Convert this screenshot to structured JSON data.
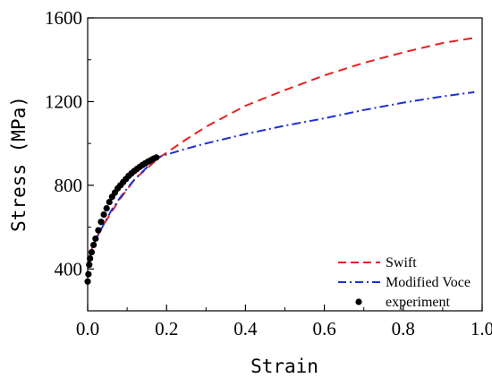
{
  "chart_data": {
    "type": "line",
    "title": "",
    "xlabel": "Strain",
    "ylabel": "Stress (MPa)",
    "xlim": [
      0.0,
      1.0
    ],
    "ylim": [
      200,
      1600
    ],
    "xticks": [
      "0.0",
      "0.2",
      "0.4",
      "0.6",
      "0.8",
      "1.0"
    ],
    "yticks": [
      "400",
      "800",
      "1200",
      "1600"
    ],
    "grid": false,
    "legend_position": "bottom-right",
    "series": [
      {
        "name": "Swift",
        "style": "dashed",
        "color": "#e8201e",
        "x": [
          0.0,
          0.01,
          0.02,
          0.04,
          0.06,
          0.08,
          0.1,
          0.12,
          0.15,
          0.18,
          0.25,
          0.3,
          0.4,
          0.5,
          0.6,
          0.7,
          0.8,
          0.9,
          0.98
        ],
        "y": [
          430,
          495,
          540,
          610,
          670,
          730,
          780,
          830,
          880,
          930,
          1020,
          1080,
          1180,
          1255,
          1325,
          1385,
          1435,
          1480,
          1505
        ]
      },
      {
        "name": "Modified Voce",
        "style": "dashdot",
        "color": "#1f2fd6",
        "x": [
          0.0,
          0.01,
          0.02,
          0.04,
          0.06,
          0.08,
          0.1,
          0.12,
          0.15,
          0.18,
          0.25,
          0.3,
          0.4,
          0.5,
          0.6,
          0.7,
          0.8,
          0.9,
          0.98
        ],
        "y": [
          420,
          490,
          540,
          610,
          680,
          735,
          785,
          830,
          885,
          935,
          975,
          1000,
          1045,
          1085,
          1120,
          1160,
          1195,
          1225,
          1245
        ]
      },
      {
        "name": "experiment",
        "style": "markers",
        "color": "#000000",
        "x": [
          0.0,
          0.002,
          0.004,
          0.006,
          0.01,
          0.015,
          0.02,
          0.027,
          0.034,
          0.041,
          0.048,
          0.055,
          0.062,
          0.069,
          0.076,
          0.083,
          0.09,
          0.097,
          0.104,
          0.111,
          0.118,
          0.125,
          0.132,
          0.139,
          0.146,
          0.153,
          0.16,
          0.167,
          0.174
        ],
        "y": [
          340,
          375,
          420,
          450,
          480,
          515,
          545,
          585,
          625,
          660,
          690,
          720,
          745,
          765,
          785,
          800,
          815,
          830,
          845,
          857,
          868,
          878,
          888,
          897,
          905,
          913,
          920,
          927,
          933
        ]
      }
    ]
  }
}
